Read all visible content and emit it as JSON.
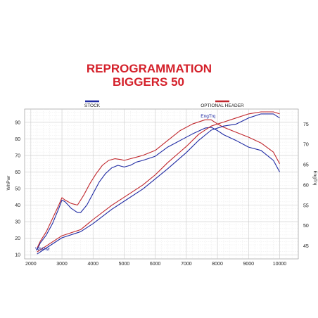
{
  "chart_data": {
    "type": "line",
    "title_lines": [
      "REPROGRAMMATION",
      "BIGGERS 50"
    ],
    "xlabel": "",
    "ylabel": "WhPwr",
    "y2label": "EngTrq",
    "xticks": [
      2000,
      3000,
      4000,
      5000,
      6000,
      7000,
      8000,
      9000,
      10000
    ],
    "yticks": [
      10,
      20,
      30,
      40,
      50,
      60,
      70,
      80,
      90
    ],
    "y2ticks": [
      45,
      50,
      55,
      60,
      65,
      70,
      75
    ],
    "xlim": [
      1800,
      10600
    ],
    "ylim": [
      7.5,
      98
    ],
    "y2lim": [
      41.8,
      78.7
    ],
    "grid": true,
    "legend": [
      {
        "name": "STOCK",
        "color": "#1f2aa3"
      },
      {
        "name": "OPTIONAL HEADER",
        "color": "#c0262c"
      }
    ],
    "annotations": [
      {
        "text": "EngTrq",
        "x": 7700,
        "y": 93
      },
      {
        "text": "WhPwr",
        "x": 2380,
        "y": 12.5
      }
    ],
    "series": [
      {
        "name": "STOCK",
        "quantity": "WhPwr",
        "color": "#1f2aa3",
        "x": [
          2200,
          2300,
          2500,
          2700,
          2900,
          3000,
          3100,
          3300,
          3500,
          3600,
          3800,
          4000,
          4200,
          4400,
          4600,
          4800,
          5000,
          5200,
          5400,
          5600,
          6000,
          6400,
          6800,
          7200,
          7600,
          7800,
          8000,
          8200,
          8600,
          9000,
          9400,
          9800,
          10000
        ],
        "y": [
          13,
          17,
          22,
          29,
          38,
          43,
          42,
          38,
          35.5,
          35.5,
          40,
          47,
          54,
          59,
          62.5,
          64,
          63,
          64,
          66,
          67,
          69.5,
          75,
          79,
          83,
          86.5,
          87,
          85,
          82.5,
          79,
          75,
          73,
          67,
          60
        ]
      },
      {
        "name": "OPTIONAL HEADER",
        "quantity": "WhPwr",
        "color": "#c0262c",
        "x": [
          2200,
          2300,
          2500,
          2700,
          2900,
          3000,
          3100,
          3300,
          3500,
          3700,
          3900,
          4100,
          4300,
          4500,
          4700,
          4900,
          5000,
          5200,
          5400,
          5600,
          6000,
          6400,
          6800,
          7200,
          7600,
          7800,
          8000,
          8200,
          8600,
          9000,
          9400,
          9800,
          10000
        ],
        "y": [
          14,
          18,
          24,
          32,
          40,
          44.5,
          43,
          41,
          40,
          46,
          53,
          59,
          64,
          67,
          68,
          67.5,
          67,
          68,
          69,
          70,
          73,
          79,
          85,
          89,
          91.5,
          91.5,
          89,
          87,
          84,
          81,
          77.5,
          72,
          65
        ]
      },
      {
        "name": "STOCK",
        "quantity": "EngTrq",
        "color": "#1f2aa3",
        "x": [
          2200,
          2600,
          3000,
          3600,
          4000,
          4600,
          5000,
          5600,
          6000,
          6400,
          7000,
          7400,
          7800,
          8200,
          8600,
          9000,
          9400,
          9800,
          10000
        ],
        "y": [
          43,
          45,
          47,
          48.5,
          50.5,
          54,
          56,
          59,
          61.5,
          64,
          68,
          71,
          73.5,
          74.5,
          75,
          76.5,
          77.5,
          77.5,
          76.5
        ]
      },
      {
        "name": "OPTIONAL HEADER",
        "quantity": "EngTrq",
        "color": "#c0262c",
        "x": [
          2200,
          2600,
          3000,
          3600,
          4000,
          4600,
          5000,
          5600,
          6000,
          6400,
          7000,
          7400,
          7800,
          8200,
          8600,
          9000,
          9400,
          9800,
          10000
        ],
        "y": [
          43.5,
          45.5,
          47.5,
          49,
          51.5,
          55,
          57,
          60,
          62.5,
          65.5,
          69.5,
          72.5,
          74.5,
          75.5,
          76.5,
          77.5,
          78,
          78,
          77.5
        ]
      }
    ]
  }
}
